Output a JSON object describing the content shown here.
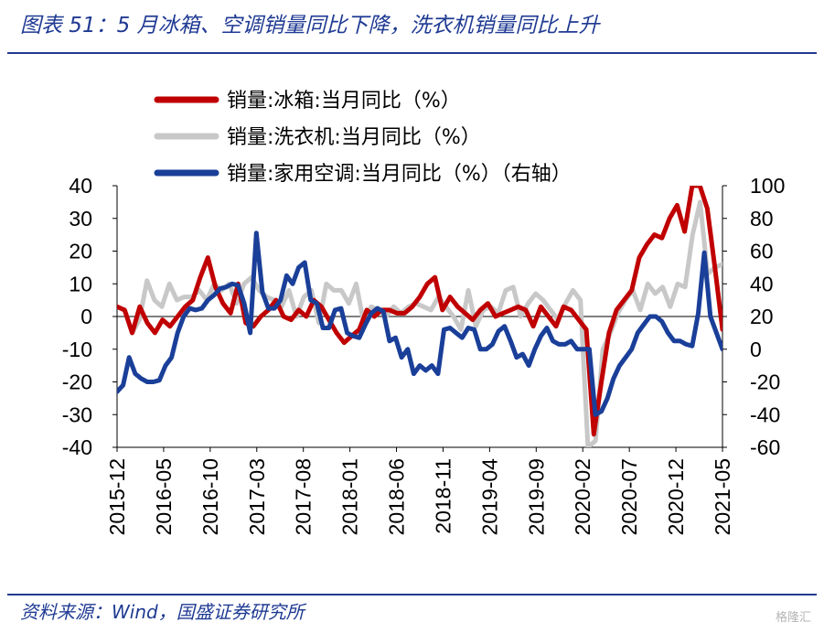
{
  "header": {
    "title": "图表 51：5 月冰箱、空调销量同比下降，洗衣机销量同比上升"
  },
  "footer": {
    "source": "资料来源：Wind，国盛证券研究所",
    "watermark": "格隆汇"
  },
  "colors": {
    "accent": "#1f3a93",
    "fridge": "#c00000",
    "washer": "#c8c8c8",
    "ac": "#1a3f99"
  },
  "chart_data": {
    "type": "line",
    "x_labels": [
      "2015-12",
      "2016-05",
      "2016-10",
      "2017-03",
      "2017-08",
      "2018-01",
      "2018-06",
      "2018-11",
      "2019-04",
      "2019-09",
      "2020-02",
      "2020-07",
      "2020-12",
      "2021-05"
    ],
    "x_start": "2015-12",
    "x_end": "2021-05",
    "y_left": {
      "lim": [
        -40,
        40
      ],
      "ticks": [
        40,
        30,
        20,
        10,
        0,
        -10,
        -20,
        -30,
        -40
      ]
    },
    "y_right": {
      "lim": [
        -60,
        100
      ],
      "ticks": [
        100,
        80,
        60,
        40,
        20,
        0,
        -20,
        -40,
        -60
      ]
    },
    "series": [
      {
        "name": "销量:冰箱:当月同比（%）",
        "axis": "left",
        "color": "#c00000",
        "values": [
          3,
          2,
          -5,
          3,
          -2,
          -5,
          -1,
          -3,
          0,
          3,
          5,
          12,
          18,
          9,
          4,
          1,
          10,
          -2,
          -3,
          0,
          2,
          5,
          0,
          -1,
          2,
          0,
          5,
          3,
          -1,
          -5,
          -8,
          -6,
          -4,
          2,
          0,
          2,
          2,
          1,
          1,
          3,
          6,
          10,
          12,
          2,
          6,
          3,
          1,
          -1,
          2,
          4,
          0,
          1,
          2,
          3,
          2,
          -3,
          3,
          0,
          -3,
          3,
          2,
          -1,
          -4,
          -36,
          -20,
          -5,
          2,
          5,
          8,
          18,
          22,
          25,
          24,
          30,
          34,
          26,
          40,
          40,
          33,
          15,
          -4
        ]
      },
      {
        "name": "销量:洗衣机:当月同比（%）",
        "axis": "left",
        "color": "#c8c8c8",
        "values": [
          3,
          2,
          -5,
          -1,
          11,
          5,
          3,
          10,
          5,
          6,
          6,
          8,
          5,
          10,
          8,
          10,
          4,
          10,
          12,
          8,
          6,
          5,
          3,
          8,
          0,
          6,
          8,
          -2,
          10,
          8,
          8,
          4,
          10,
          -2,
          3,
          2,
          0,
          3,
          1,
          3,
          4,
          3,
          2,
          6,
          3,
          0,
          -4,
          8,
          -3,
          2,
          3,
          1,
          8,
          9,
          0,
          4,
          7,
          5,
          2,
          -1,
          4,
          8,
          5,
          -40,
          -38,
          -10,
          -5,
          1,
          5,
          8,
          2,
          10,
          7,
          9,
          3,
          10,
          9,
          25,
          35,
          13,
          15,
          16
        ]
      },
      {
        "name": "销量:家用空调:当月同比（%）（右轴）",
        "axis": "right",
        "color": "#1a3f99",
        "values": [
          -26,
          -22,
          -5,
          -15,
          -18,
          -20,
          -20,
          -19,
          -10,
          -5,
          10,
          20,
          25,
          24,
          25,
          30,
          33,
          37,
          38,
          40,
          39,
          28,
          10,
          71,
          35,
          25,
          25,
          30,
          45,
          40,
          50,
          53,
          30,
          28,
          13,
          13,
          24,
          25,
          10,
          8,
          7,
          15,
          22,
          25,
          23,
          5,
          7,
          -5,
          0,
          -15,
          -10,
          -13,
          -10,
          -15,
          12,
          13,
          10,
          7,
          13,
          12,
          0,
          0,
          3,
          11,
          14,
          5,
          -5,
          -3,
          -10,
          0,
          8,
          13,
          5,
          3,
          3,
          5,
          0,
          0,
          0,
          -40,
          -38,
          -30,
          -18,
          -10,
          -5,
          0,
          10,
          15,
          20,
          20,
          17,
          10,
          5,
          5,
          3,
          2,
          22,
          59,
          20,
          10,
          0
        ]
      }
    ]
  }
}
